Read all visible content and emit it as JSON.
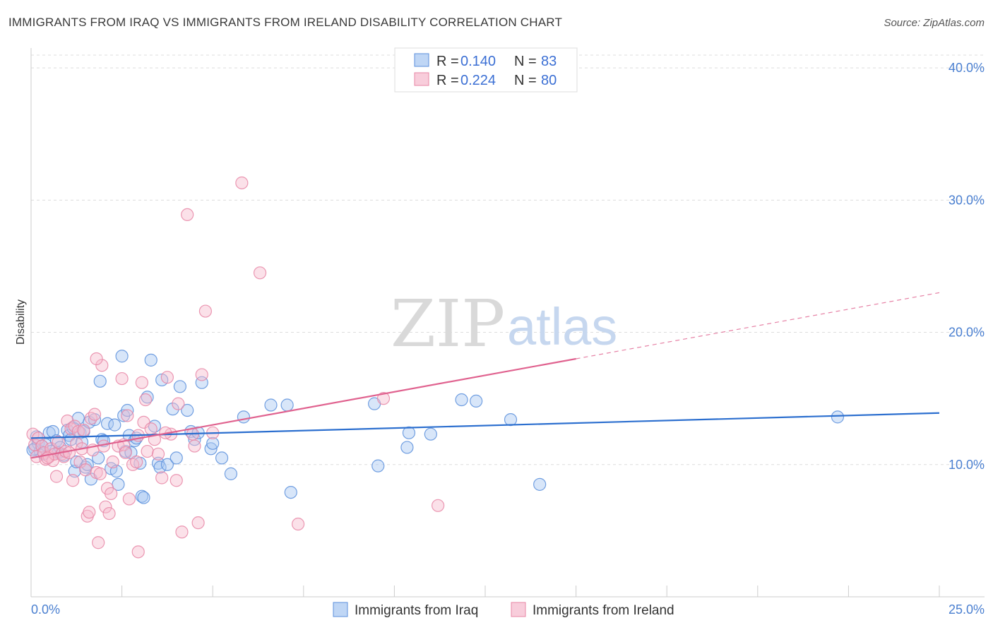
{
  "title": "IMMIGRANTS FROM IRAQ VS IMMIGRANTS FROM IRELAND DISABILITY CORRELATION CHART",
  "source": "Source: ZipAtlas.com",
  "watermark": {
    "part1": "ZIP",
    "part2": "atlas"
  },
  "colors": {
    "iraq_fill": "#a9c8f2",
    "iraq_stroke": "#5b8fdc",
    "iraq_line": "#2c6fcf",
    "ireland_fill": "#f6bccf",
    "ireland_stroke": "#e886a6",
    "ireland_line": "#e0628f",
    "grid": "#dddddd",
    "tick_label": "#4a7fd0"
  },
  "legend": {
    "rows": [
      {
        "r_label": "R =",
        "r_value": "0.140",
        "n_label": "N =",
        "n_value": "83"
      },
      {
        "r_label": "R =",
        "r_value": "0.224",
        "n_label": "N =",
        "n_value": "80"
      }
    ]
  },
  "chart_data": {
    "type": "scatter",
    "title": "IMMIGRANTS FROM IRAQ VS IMMIGRANTS FROM IRELAND DISABILITY CORRELATION CHART",
    "xlabel": "",
    "ylabel": "Disability",
    "xlim": [
      0,
      25
    ],
    "ylim": [
      0,
      41.5
    ],
    "x_tick_labels": [
      "0.0%",
      "25.0%"
    ],
    "y_ticks": [
      10,
      20,
      30,
      40
    ],
    "y_tick_labels": [
      "10.0%",
      "20.0%",
      "30.0%",
      "40.0%"
    ],
    "grid": true,
    "legend_position": "top-center",
    "series": [
      {
        "name": "Immigrants from Iraq",
        "r": 0.14,
        "n": 83,
        "trend": {
          "x": [
            0,
            25
          ],
          "y": [
            12.0,
            13.9
          ]
        },
        "points": [
          [
            0.1,
            11.2
          ],
          [
            0.15,
            12.1
          ],
          [
            0.2,
            11.6
          ],
          [
            0.25,
            11.0
          ],
          [
            0.3,
            11.4
          ],
          [
            0.35,
            10.8
          ],
          [
            0.4,
            11.5
          ],
          [
            0.5,
            12.4
          ],
          [
            0.55,
            11.0
          ],
          [
            0.6,
            12.5
          ],
          [
            0.7,
            11.8
          ],
          [
            0.75,
            10.9
          ],
          [
            0.8,
            11.3
          ],
          [
            0.9,
            10.7
          ],
          [
            1.0,
            12.6
          ],
          [
            1.05,
            12.2
          ],
          [
            1.1,
            11.9
          ],
          [
            1.15,
            12.8
          ],
          [
            1.2,
            9.5
          ],
          [
            1.25,
            10.2
          ],
          [
            1.3,
            13.5
          ],
          [
            1.35,
            12.4
          ],
          [
            1.4,
            11.7
          ],
          [
            1.45,
            12.5
          ],
          [
            1.5,
            9.8
          ],
          [
            1.55,
            10.0
          ],
          [
            1.6,
            13.2
          ],
          [
            1.65,
            8.9
          ],
          [
            1.75,
            13.4
          ],
          [
            1.85,
            10.5
          ],
          [
            1.9,
            16.3
          ],
          [
            1.95,
            11.9
          ],
          [
            2.0,
            11.8
          ],
          [
            2.1,
            13.1
          ],
          [
            2.2,
            9.7
          ],
          [
            2.3,
            13.0
          ],
          [
            2.35,
            9.5
          ],
          [
            2.4,
            8.5
          ],
          [
            2.5,
            18.2
          ],
          [
            2.55,
            13.7
          ],
          [
            2.6,
            11.0
          ],
          [
            2.65,
            14.1
          ],
          [
            2.7,
            12.2
          ],
          [
            2.75,
            10.9
          ],
          [
            2.85,
            11.8
          ],
          [
            2.9,
            12.0
          ],
          [
            3.0,
            10.1
          ],
          [
            3.05,
            7.6
          ],
          [
            3.1,
            7.5
          ],
          [
            3.2,
            15.1
          ],
          [
            3.3,
            17.9
          ],
          [
            3.4,
            12.9
          ],
          [
            3.5,
            10.1
          ],
          [
            3.55,
            9.8
          ],
          [
            3.6,
            16.4
          ],
          [
            3.75,
            10.0
          ],
          [
            3.9,
            14.2
          ],
          [
            4.0,
            10.5
          ],
          [
            4.1,
            15.9
          ],
          [
            4.3,
            14.1
          ],
          [
            4.4,
            12.5
          ],
          [
            4.5,
            11.9
          ],
          [
            4.6,
            12.4
          ],
          [
            4.7,
            16.2
          ],
          [
            4.95,
            11.2
          ],
          [
            5.0,
            11.6
          ],
          [
            5.25,
            10.5
          ],
          [
            5.5,
            9.3
          ],
          [
            5.85,
            13.6
          ],
          [
            6.6,
            14.5
          ],
          [
            7.05,
            14.5
          ],
          [
            7.15,
            7.9
          ],
          [
            9.45,
            14.6
          ],
          [
            9.55,
            9.9
          ],
          [
            10.35,
            11.3
          ],
          [
            10.4,
            12.4
          ],
          [
            11.0,
            12.3
          ],
          [
            11.85,
            14.9
          ],
          [
            12.25,
            14.8
          ],
          [
            13.2,
            13.4
          ],
          [
            14.0,
            8.5
          ],
          [
            22.2,
            13.6
          ],
          [
            0.05,
            11.1
          ]
        ]
      },
      {
        "name": "Immigrants from Ireland",
        "r": 0.224,
        "n": 80,
        "trend": {
          "x": [
            0,
            15
          ],
          "y": [
            10.5,
            18.0
          ]
        },
        "trend_dashed": {
          "x": [
            15,
            25
          ],
          "y": [
            18.0,
            23.0
          ]
        },
        "points": [
          [
            0.05,
            12.3
          ],
          [
            0.1,
            11.5
          ],
          [
            0.15,
            10.6
          ],
          [
            0.2,
            12.0
          ],
          [
            0.3,
            11.4
          ],
          [
            0.35,
            10.9
          ],
          [
            0.4,
            10.4
          ],
          [
            0.5,
            10.6
          ],
          [
            0.55,
            11.2
          ],
          [
            0.6,
            10.3
          ],
          [
            0.65,
            10.8
          ],
          [
            0.7,
            9.1
          ],
          [
            0.75,
            11.7
          ],
          [
            0.85,
            10.8
          ],
          [
            0.9,
            10.6
          ],
          [
            0.95,
            11.0
          ],
          [
            1.0,
            13.3
          ],
          [
            1.05,
            10.9
          ],
          [
            1.1,
            12.7
          ],
          [
            1.15,
            8.8
          ],
          [
            1.2,
            12.9
          ],
          [
            1.25,
            11.6
          ],
          [
            1.3,
            12.5
          ],
          [
            1.35,
            10.2
          ],
          [
            1.4,
            11.2
          ],
          [
            1.45,
            12.6
          ],
          [
            1.5,
            9.6
          ],
          [
            1.55,
            6.1
          ],
          [
            1.6,
            6.4
          ],
          [
            1.65,
            13.5
          ],
          [
            1.7,
            11.1
          ],
          [
            1.75,
            13.8
          ],
          [
            1.8,
            9.4
          ],
          [
            1.85,
            4.1
          ],
          [
            1.9,
            9.3
          ],
          [
            1.95,
            17.5
          ],
          [
            2.0,
            11.4
          ],
          [
            2.05,
            6.8
          ],
          [
            2.1,
            8.2
          ],
          [
            2.15,
            6.3
          ],
          [
            2.2,
            7.8
          ],
          [
            2.25,
            10.2
          ],
          [
            2.4,
            11.4
          ],
          [
            2.5,
            16.5
          ],
          [
            2.55,
            11.5
          ],
          [
            2.6,
            10.9
          ],
          [
            2.65,
            13.7
          ],
          [
            2.7,
            7.4
          ],
          [
            2.8,
            10.0
          ],
          [
            2.9,
            10.2
          ],
          [
            2.95,
            3.4
          ],
          [
            3.05,
            16.2
          ],
          [
            3.1,
            13.2
          ],
          [
            3.15,
            14.9
          ],
          [
            3.2,
            11.0
          ],
          [
            3.3,
            12.7
          ],
          [
            3.4,
            11.9
          ],
          [
            3.5,
            10.8
          ],
          [
            3.6,
            9.0
          ],
          [
            3.75,
            16.6
          ],
          [
            3.85,
            12.3
          ],
          [
            4.0,
            8.8
          ],
          [
            4.05,
            14.6
          ],
          [
            4.15,
            4.9
          ],
          [
            4.3,
            28.9
          ],
          [
            4.45,
            12.3
          ],
          [
            4.5,
            11.4
          ],
          [
            4.6,
            5.6
          ],
          [
            4.7,
            16.8
          ],
          [
            4.8,
            21.6
          ],
          [
            5.0,
            12.4
          ],
          [
            5.8,
            31.3
          ],
          [
            6.3,
            24.5
          ],
          [
            7.35,
            5.5
          ],
          [
            9.7,
            15.0
          ],
          [
            11.2,
            6.9
          ],
          [
            1.8,
            18.0
          ],
          [
            2.95,
            12.2
          ],
          [
            0.45,
            10.5
          ],
          [
            3.7,
            12.4
          ]
        ]
      }
    ]
  },
  "bottom_legend": [
    {
      "label": "Immigrants from Iraq"
    },
    {
      "label": "Immigrants from Ireland"
    }
  ]
}
